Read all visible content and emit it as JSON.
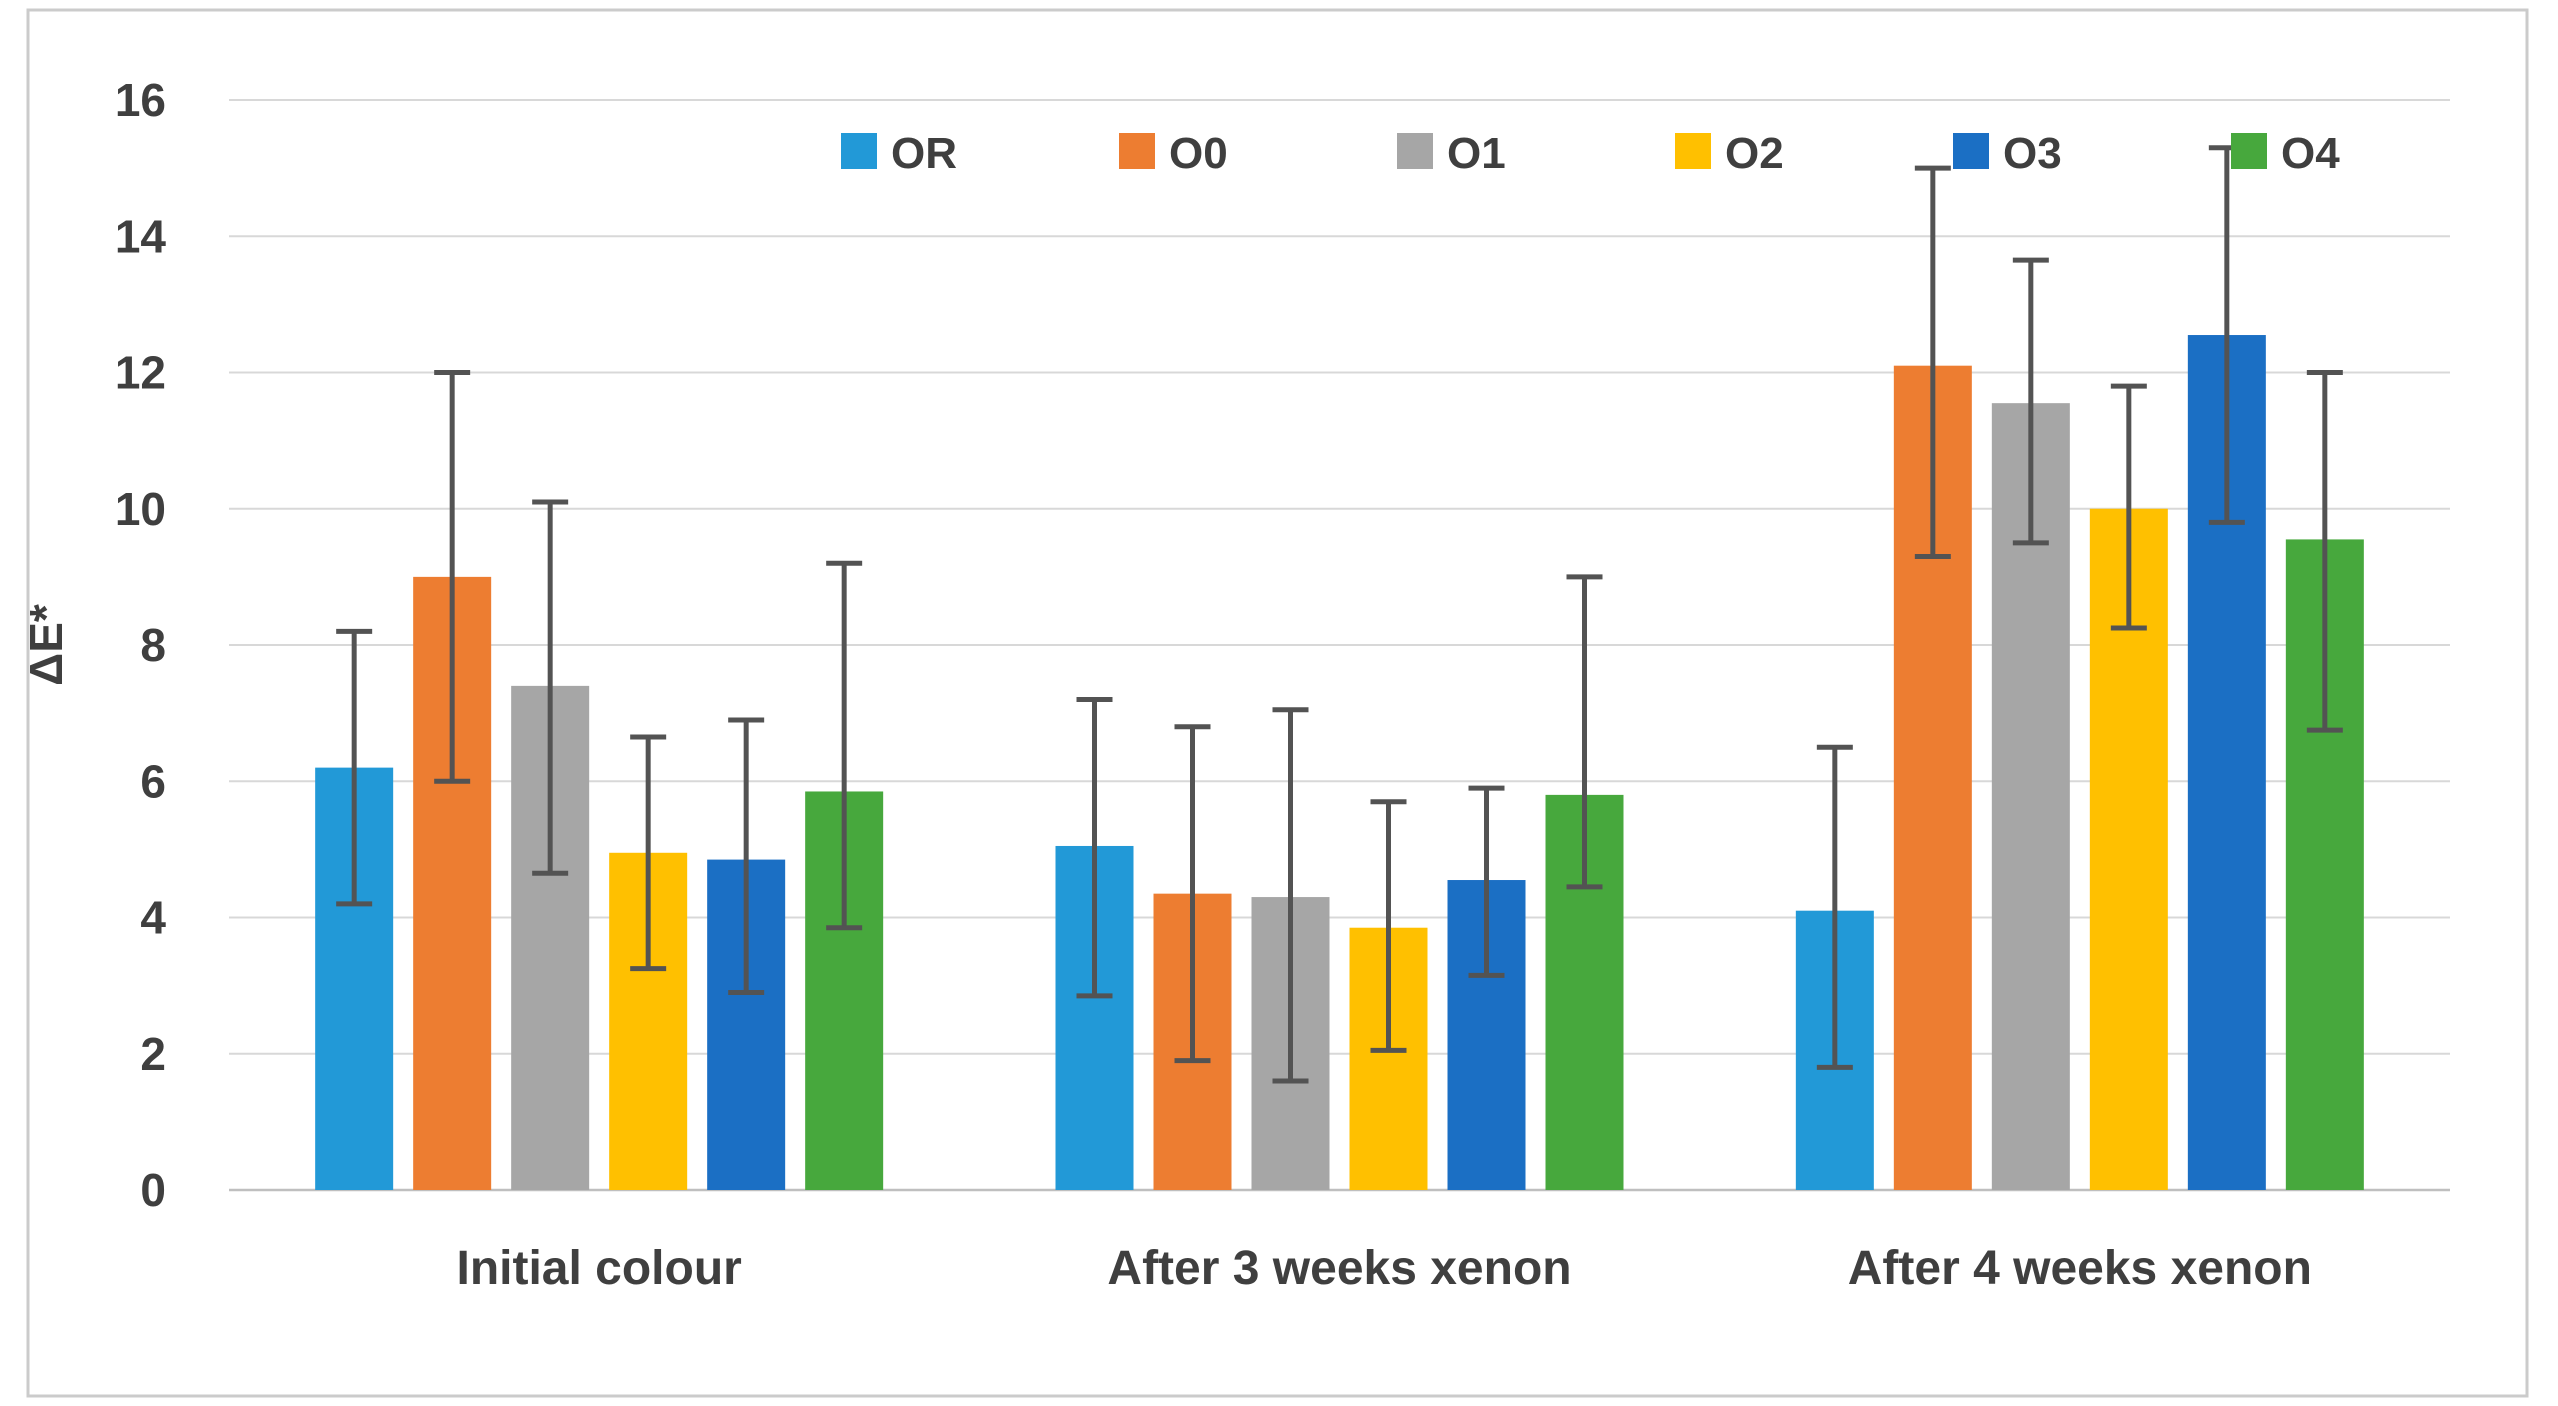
{
  "chart_data": {
    "type": "bar",
    "title": "",
    "xlabel": "",
    "ylabel": "ΔE*",
    "ylim": [
      0,
      16
    ],
    "yticks": [
      0,
      2,
      4,
      6,
      8,
      10,
      12,
      14,
      16
    ],
    "grid": true,
    "legend_position": "top-center",
    "categories": [
      "Initial colour",
      "After 3 weeks xenon",
      "After 4 weeks xenon"
    ],
    "series": [
      {
        "name": "OR",
        "color": "#2299D7",
        "values": [
          6.2,
          5.05,
          4.1
        ],
        "error_low": [
          4.2,
          2.85,
          1.8
        ],
        "error_high": [
          8.2,
          7.2,
          6.5
        ]
      },
      {
        "name": "O0",
        "color": "#ED7D31",
        "values": [
          9.0,
          4.35,
          12.1
        ],
        "error_low": [
          6.0,
          1.9,
          9.3
        ],
        "error_high": [
          12.0,
          6.8,
          15.0
        ]
      },
      {
        "name": "O1",
        "color": "#A6A6A6",
        "values": [
          7.4,
          4.3,
          11.55
        ],
        "error_low": [
          4.65,
          1.6,
          9.5
        ],
        "error_high": [
          10.1,
          7.05,
          13.65
        ]
      },
      {
        "name": "O2",
        "color": "#FFC000",
        "values": [
          4.95,
          3.85,
          10.0
        ],
        "error_low": [
          3.25,
          2.05,
          8.25
        ],
        "error_high": [
          6.65,
          5.7,
          11.8
        ]
      },
      {
        "name": "O3",
        "color": "#1B6FC4",
        "values": [
          4.85,
          4.55,
          12.55
        ],
        "error_low": [
          2.9,
          3.15,
          9.8
        ],
        "error_high": [
          6.9,
          5.9,
          15.3
        ]
      },
      {
        "name": "O4",
        "color": "#47A83D",
        "values": [
          5.85,
          5.8,
          9.55
        ],
        "error_low": [
          3.85,
          4.45,
          6.75
        ],
        "error_high": [
          9.2,
          9.0,
          12.0
        ]
      }
    ],
    "colors": {
      "error_bar": "#535353",
      "axis_text": "#3F3F3F",
      "gridline": "#D8D8D8",
      "axis_line": "#BFBFBF",
      "frame_border": "#CBCBCB",
      "background": "#FFFFFF"
    }
  }
}
